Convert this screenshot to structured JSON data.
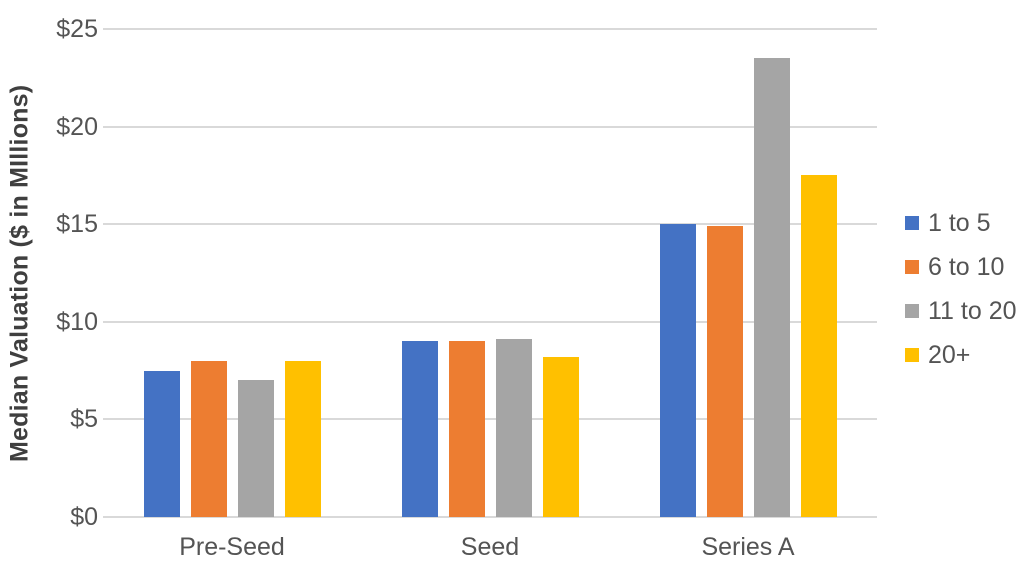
{
  "chart_data": {
    "type": "bar",
    "title": "",
    "ylabel": "Median Valuation ($ in MIllions)",
    "xlabel": "",
    "categories": [
      "Pre-Seed",
      "Seed",
      "Series A"
    ],
    "series": [
      {
        "name": "1 to 5",
        "color": "#4472C4",
        "values": [
          7.5,
          9.0,
          15.0
        ]
      },
      {
        "name": "6 to 10",
        "color": "#ED7D31",
        "values": [
          8.0,
          9.0,
          14.9
        ]
      },
      {
        "name": "11 to 20",
        "color": "#A5A5A5",
        "values": [
          7.0,
          9.1,
          23.5
        ]
      },
      {
        "name": "20+",
        "color": "#FFC000",
        "values": [
          8.0,
          8.2,
          17.5
        ]
      }
    ],
    "ylim": [
      0,
      25
    ],
    "ytick_step": 5,
    "ytick_labels": [
      "$0",
      "$5",
      "$10",
      "$15",
      "$20",
      "$25"
    ],
    "grid": true,
    "legend_position": "right",
    "colors": {
      "gridline": "#D9D9D9",
      "text": "#545454",
      "axis_title_text": "#3F3F3F",
      "background": "#FFFFFF"
    }
  }
}
